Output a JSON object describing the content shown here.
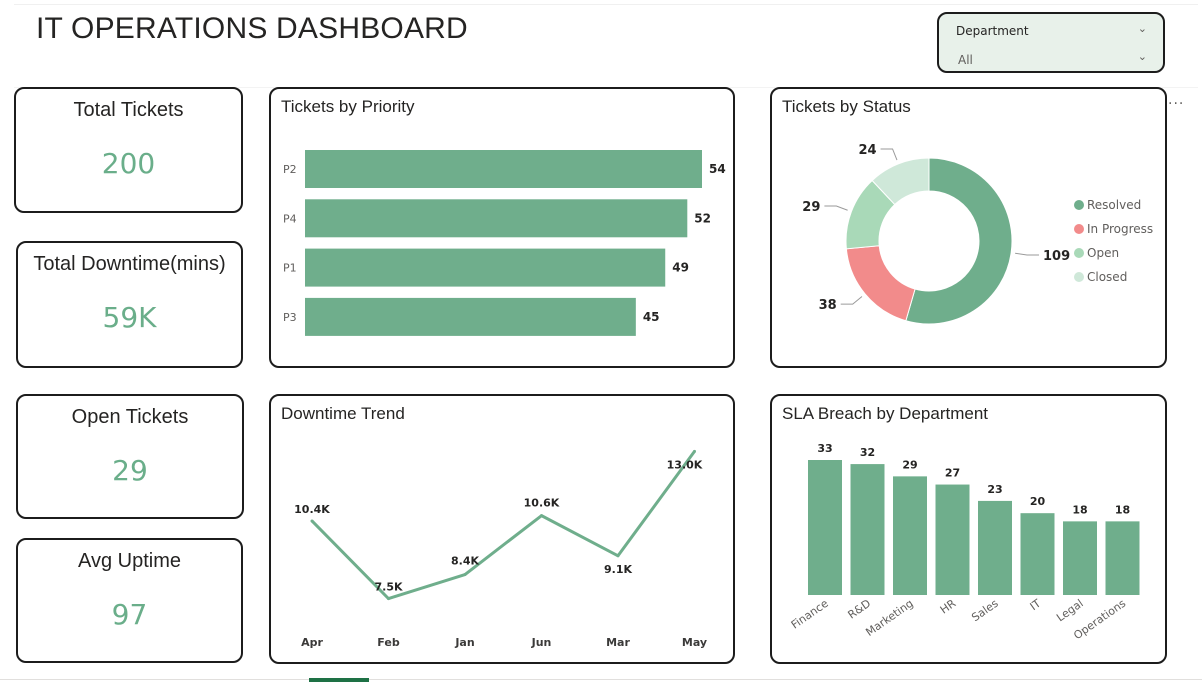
{
  "page": {
    "title": "IT OPERATIONS DASHBOARD"
  },
  "slicer": {
    "label": "Department",
    "value": "All"
  },
  "kpis": [
    {
      "title": "Total Tickets",
      "value": "200"
    },
    {
      "title": "Total Downtime(mins)",
      "value": "59K"
    },
    {
      "title": "Open Tickets",
      "value": "29"
    },
    {
      "title": "Avg Uptime",
      "value": "97"
    }
  ],
  "more_options": "···",
  "colors": {
    "accent": "#6fae8c",
    "resolved": "#6fae8c",
    "in_progress": "#f28b8b",
    "open": "#a9d9b8",
    "closed": "#cfe8d9",
    "border": "#1c1c1c"
  },
  "chart_data": [
    {
      "type": "bar",
      "orientation": "horizontal",
      "title": "Tickets by Priority",
      "categories": [
        "P2",
        "P4",
        "P1",
        "P3"
      ],
      "values": [
        54,
        52,
        49,
        45
      ],
      "labels": [
        "54",
        "52",
        "49",
        "45"
      ],
      "xlim": [
        0,
        54
      ]
    },
    {
      "type": "pie",
      "donut": true,
      "title": "Tickets by Status",
      "categories": [
        "Resolved",
        "In Progress",
        "Open",
        "Closed"
      ],
      "values": [
        109,
        38,
        29,
        24
      ],
      "labels": [
        "109",
        "38",
        "29",
        "24"
      ],
      "legend": "right"
    },
    {
      "type": "line",
      "title": "Downtime Trend",
      "categories": [
        "Apr",
        "Feb",
        "Jan",
        "Jun",
        "Mar",
        "May"
      ],
      "values": [
        10400,
        7500,
        8400,
        10600,
        9100,
        13000
      ],
      "labels": [
        "10.4K",
        "7.5K",
        "8.4K",
        "10.6K",
        "9.1K",
        "13.0K"
      ],
      "ylim": [
        7000,
        13500
      ]
    },
    {
      "type": "bar",
      "title": "SLA Breach by Department",
      "categories": [
        "Finance",
        "R&D",
        "Marketing",
        "HR",
        "Sales",
        "IT",
        "Legal",
        "Operations"
      ],
      "values": [
        33,
        32,
        29,
        27,
        23,
        20,
        18,
        18
      ],
      "labels": [
        "33",
        "32",
        "29",
        "27",
        "23",
        "20",
        "18",
        "18"
      ],
      "ylim": [
        0,
        33
      ]
    }
  ]
}
